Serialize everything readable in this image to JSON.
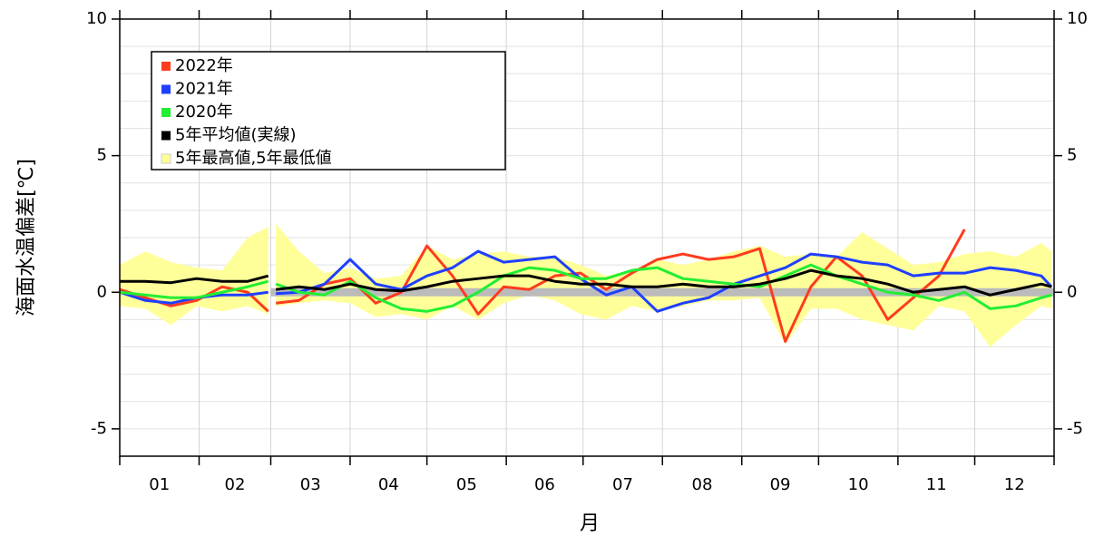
{
  "chart_data": {
    "type": "line",
    "ylabel": "海面水温偏差[℃]",
    "xlabel": "月",
    "month_labels": [
      "01",
      "02",
      "03",
      "04",
      "05",
      "06",
      "07",
      "08",
      "09",
      "10",
      "11",
      "12"
    ],
    "xlim": [
      0,
      365
    ],
    "xticks": [
      0,
      31,
      59,
      90,
      120,
      151,
      181,
      212,
      243,
      273,
      304,
      334,
      365
    ],
    "ylim": [
      -6,
      10
    ],
    "yticks": [
      -5,
      0,
      5,
      10
    ],
    "minor_yticks": [
      -6,
      -5,
      -4,
      -3,
      -2,
      -1,
      0,
      1,
      2,
      3,
      4,
      5,
      6,
      7,
      8,
      9,
      10
    ],
    "grid": true,
    "legend": "upper left",
    "normal_band": {
      "x": [
        59,
        365
      ],
      "values": [
        0,
        0
      ],
      "color": "#bbbbbb"
    },
    "x": [
      0,
      10,
      20,
      30,
      40,
      50,
      58,
      59,
      61,
      70,
      80,
      90,
      100,
      110,
      120,
      130,
      140,
      150,
      160,
      170,
      180,
      190,
      200,
      210,
      220,
      230,
      240,
      250,
      260,
      270,
      280,
      290,
      300,
      310,
      320,
      330,
      340,
      350,
      360,
      364
    ],
    "band": {
      "name": "5年最高値,5年最低値",
      "color": "#ffff99",
      "upper": [
        1.0,
        1.5,
        1.1,
        0.9,
        0.8,
        2.0,
        2.4,
        null,
        2.5,
        1.5,
        0.7,
        0.9,
        0.5,
        0.6,
        1.7,
        1.2,
        1.4,
        1.5,
        1.3,
        1.3,
        1.0,
        0.6,
        0.8,
        1.2,
        1.0,
        1.2,
        1.5,
        1.7,
        1.3,
        1.4,
        1.3,
        2.2,
        1.6,
        1.0,
        1.1,
        1.4,
        1.5,
        1.3,
        1.8,
        1.5
      ],
      "lower": [
        -0.5,
        -0.6,
        -1.2,
        -0.5,
        -0.7,
        -0.5,
        -0.8,
        null,
        -0.5,
        -0.4,
        -0.3,
        -0.4,
        -0.9,
        -0.8,
        -1.0,
        -0.5,
        -1.0,
        -0.4,
        -0.1,
        -0.3,
        -0.8,
        -1.0,
        -0.5,
        -0.7,
        -0.5,
        -0.3,
        -0.3,
        -0.2,
        -1.9,
        -0.6,
        -0.6,
        -1.0,
        -1.2,
        -1.4,
        -0.5,
        -0.7,
        -2.0,
        -1.2,
        -0.5,
        -0.6
      ]
    },
    "series": [
      {
        "name": "2022年",
        "color": "#ff3b1f",
        "values": [
          0.1,
          -0.2,
          -0.5,
          -0.3,
          0.2,
          0.0,
          -0.7,
          null,
          -0.4,
          -0.3,
          0.3,
          0.5,
          -0.4,
          0.0,
          1.7,
          0.6,
          -0.8,
          0.2,
          0.1,
          0.6,
          0.7,
          0.1,
          0.7,
          1.2,
          1.4,
          1.2,
          1.3,
          1.6,
          -1.8,
          0.2,
          1.3,
          0.6,
          -1.0,
          -0.2,
          0.6,
          2.3,
          null,
          null,
          null,
          null
        ]
      },
      {
        "name": "2021年",
        "color": "#1f3fff",
        "values": [
          0.0,
          -0.3,
          -0.4,
          -0.2,
          -0.1,
          -0.1,
          0.0,
          null,
          -0.05,
          0.0,
          0.3,
          1.2,
          0.3,
          0.1,
          0.6,
          0.9,
          1.5,
          1.1,
          1.2,
          1.3,
          0.5,
          -0.1,
          0.2,
          -0.7,
          -0.4,
          -0.2,
          0.3,
          0.6,
          0.9,
          1.4,
          1.3,
          1.1,
          1.0,
          0.6,
          0.7,
          0.7,
          0.9,
          0.8,
          0.6,
          0.2
        ]
      },
      {
        "name": "2020年",
        "color": "#22ee33",
        "values": [
          0.0,
          -0.1,
          -0.2,
          -0.2,
          0.0,
          0.2,
          0.4,
          null,
          0.3,
          0.0,
          -0.1,
          0.4,
          -0.2,
          -0.6,
          -0.7,
          -0.5,
          0.0,
          0.6,
          0.9,
          0.8,
          0.5,
          0.5,
          0.8,
          0.9,
          0.5,
          0.4,
          0.3,
          0.2,
          0.6,
          1.0,
          0.6,
          0.3,
          0.0,
          -0.1,
          -0.3,
          0.0,
          -0.6,
          -0.5,
          -0.2,
          -0.1
        ]
      },
      {
        "name": "5年平均値(実線)",
        "color": "#000000",
        "values": [
          0.4,
          0.4,
          0.35,
          0.5,
          0.4,
          0.4,
          0.6,
          null,
          0.1,
          0.2,
          0.1,
          0.3,
          0.1,
          0.05,
          0.2,
          0.4,
          0.5,
          0.6,
          0.6,
          0.4,
          0.3,
          0.3,
          0.2,
          0.2,
          0.3,
          0.2,
          0.2,
          0.3,
          0.5,
          0.8,
          0.6,
          0.5,
          0.3,
          0.0,
          0.1,
          0.2,
          -0.1,
          0.1,
          0.3,
          0.2
        ]
      }
    ]
  }
}
